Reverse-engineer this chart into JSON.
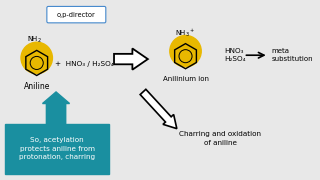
{
  "bg_color": "#e8e8e8",
  "aniline_label": "Aniline",
  "anilinium_label": "Anilinium ion",
  "reaction1_a": "+  HNO₃ / H₂SO₄",
  "reaction2_line1": "HNO₃",
  "reaction2_line2": "H₂SO₄",
  "meta_text": "meta\nsubstitution",
  "charring_text": "Charring and oxidation\nof aniline",
  "box_text": "So, acetylation\nprotects aniline from\nprotonation, charring",
  "op_director_label": "o,p-director",
  "yellow": "#e8b800",
  "box_bg": "#1a8fa0",
  "box_text_color": "#ffffff",
  "op_box_bg": "#ffffff",
  "op_box_border": "#4488cc",
  "black": "#111111"
}
